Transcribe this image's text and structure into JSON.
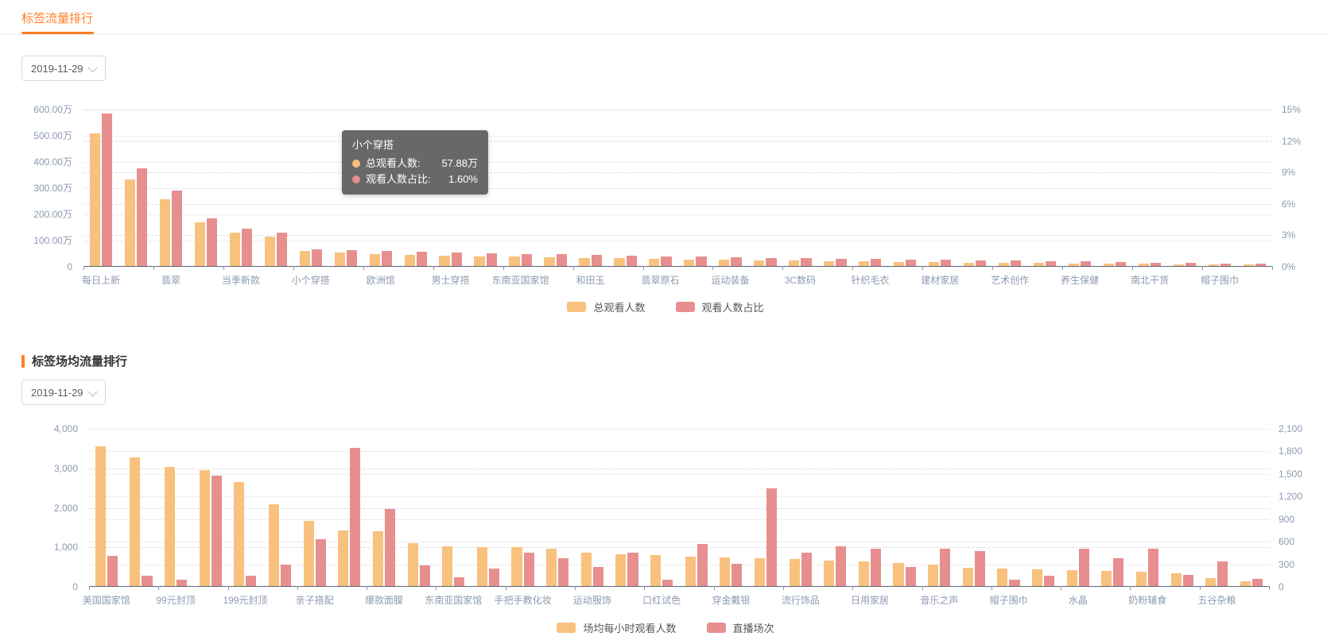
{
  "page": {
    "tab_title": "标签流量排行",
    "section_title": "标签场均流量排行",
    "date_filter_1": "2019-11-29",
    "date_filter_2": "2019-11-29"
  },
  "colors": {
    "accent": "#FF7E26",
    "orange": "#F8C17E",
    "red": "#E78F8F"
  },
  "tooltip": {
    "title": "小个穿搭",
    "rows": [
      {
        "label": "总观看人数:",
        "value": "57.88万",
        "color": "#F8C17E"
      },
      {
        "label": "观看人数占比:",
        "value": "1.60%",
        "color": "#E78F8F"
      }
    ]
  },
  "chart_data": [
    {
      "type": "bar",
      "title": "标签流量排行",
      "legend_position": "bottom",
      "grid": true,
      "categories": [
        "每日上新",
        "",
        "翡翠",
        "",
        "当季新款",
        "",
        "小个穿搭",
        "",
        "欧洲馆",
        "",
        "男士穿搭",
        "",
        "东南亚国家馆",
        "",
        "和田玉",
        "",
        "翡翠原石",
        "",
        "运动装备",
        "",
        "3C数码",
        "",
        "针织毛衣",
        "",
        "建材家居",
        "",
        "艺术创作",
        "",
        "养生保健",
        "",
        "南北干货",
        "",
        "帽子围巾",
        ""
      ],
      "y_left": {
        "max": 600,
        "unit": "万",
        "ticks": [
          "600.00万",
          "500.00万",
          "400.00万",
          "300.00万",
          "200.00万",
          "100.00万",
          "0"
        ]
      },
      "y_right": {
        "max": 15,
        "unit": "%",
        "ticks": [
          "15%",
          "12%",
          "9%",
          "6%",
          "3%",
          "0%"
        ]
      },
      "series": [
        {
          "name": "总观看人数",
          "axis": "left",
          "unit": "万",
          "color": "#F8C17E",
          "values": [
            509,
            331,
            255,
            167,
            127,
            112,
            57.88,
            52,
            46,
            43,
            40.5,
            38,
            36.5,
            34,
            31.5,
            29.5,
            27.5,
            25.5,
            24,
            21.5,
            20,
            18.5,
            17,
            16,
            14.5,
            13,
            12,
            11,
            10,
            9,
            8,
            7,
            6,
            5
          ]
        },
        {
          "name": "观看人数占比",
          "axis": "right",
          "unit": "%",
          "color": "#E78F8F",
          "values": [
            14.6,
            9.4,
            7.25,
            4.6,
            3.55,
            3.2,
            1.6,
            1.55,
            1.45,
            1.4,
            1.32,
            1.25,
            1.18,
            1.12,
            1.06,
            1.0,
            0.95,
            0.9,
            0.85,
            0.8,
            0.75,
            0.7,
            0.66,
            0.62,
            0.58,
            0.54,
            0.5,
            0.46,
            0.42,
            0.38,
            0.34,
            0.3,
            0.26,
            0.22
          ]
        }
      ],
      "tooltip_shown": {
        "category": "小个穿搭",
        "总观看人数": "57.88万",
        "观看人数占比": "1.60%"
      }
    },
    {
      "type": "bar",
      "title": "标签场均流量排行",
      "legend_position": "bottom",
      "grid": true,
      "categories": [
        "美国国家馆",
        "",
        "99元封顶",
        "",
        "199元封顶",
        "",
        "亲子搭配",
        "",
        "爆款面膜",
        "",
        "东南亚国家馆",
        "",
        "手把手教化妆",
        "",
        "运动服饰",
        "",
        "口红试色",
        "",
        "穿金戴银",
        "",
        "流行饰品",
        "",
        "日用家居",
        "",
        "音乐之声",
        "",
        "帽子围巾",
        "",
        "水晶",
        "",
        "奶粉辅食",
        "",
        "五谷杂粮",
        ""
      ],
      "y_left": {
        "max": 4000,
        "unit": "",
        "ticks": [
          "4,000",
          "3,000",
          "2,000",
          "1,000",
          "0"
        ]
      },
      "y_right": {
        "max": 2100,
        "unit": "",
        "ticks": [
          "2,100",
          "1,800",
          "1,500",
          "1,200",
          "900",
          "600",
          "300",
          "0"
        ]
      },
      "series": [
        {
          "name": "场均每小时观看人数",
          "axis": "left",
          "unit": "",
          "color": "#F8C17E",
          "values": [
            3550,
            3280,
            3030,
            2940,
            2650,
            2080,
            1650,
            1420,
            1400,
            1100,
            1010,
            1000,
            1000,
            950,
            840,
            800,
            780,
            750,
            720,
            700,
            680,
            650,
            620,
            580,
            540,
            460,
            440,
            420,
            410,
            380,
            360,
            330,
            200,
            120
          ]
        },
        {
          "name": "直播场次",
          "axis": "right",
          "unit": "",
          "color": "#E78F8F",
          "values": [
            400,
            140,
            85,
            1470,
            140,
            285,
            630,
            1850,
            1030,
            280,
            120,
            230,
            450,
            370,
            250,
            450,
            80,
            560,
            300,
            1300,
            450,
            530,
            500,
            250,
            500,
            465,
            80,
            140,
            500,
            370,
            500,
            150,
            330,
            100
          ]
        }
      ]
    }
  ]
}
